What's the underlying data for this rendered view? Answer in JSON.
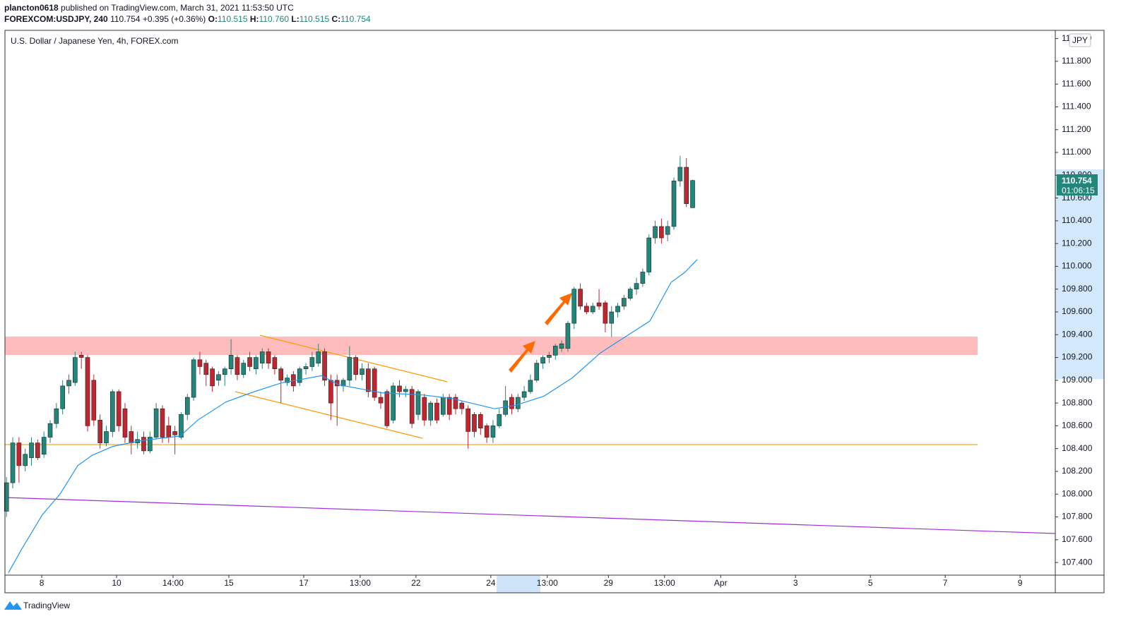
{
  "header": {
    "author": "plancton0618",
    "published": "published on TradingView.com, March 31, 2021 11:53:50 UTC",
    "symbol": "FOREXCOM:USDJPY, 240",
    "last": "110.754",
    "change": "+0.395 (+0.36%)",
    "ohlc": [
      {
        "label": "O:",
        "value": "110.515"
      },
      {
        "label": "H:",
        "value": "110.760"
      },
      {
        "label": "L:",
        "value": "110.515"
      },
      {
        "label": "C:",
        "value": "110.754"
      }
    ]
  },
  "currency": "JPY",
  "price_badge": {
    "price": "110.754",
    "countdown": "01:06:15"
  },
  "footer": {
    "brand": "TradingView"
  },
  "chart_data": {
    "type": "candlestick",
    "title": "U.S. Dollar / Japanese Yen, 4h, FOREX.com",
    "up_color": "#22877a",
    "down_color": "#c0262f",
    "grid": false,
    "xlim": [
      -0.25,
      168.15
    ],
    "xticks": [
      {
        "value": 5.65,
        "label": "8"
      },
      {
        "value": 17.65,
        "label": "10"
      },
      {
        "value": 26.7,
        "label": "14:00"
      },
      {
        "value": 35.65,
        "label": "15"
      },
      {
        "value": 47.65,
        "label": "17"
      },
      {
        "value": 56.7,
        "label": "13:00"
      },
      {
        "value": 65.65,
        "label": "22"
      },
      {
        "value": 77.65,
        "label": "24"
      },
      {
        "value": 86.7,
        "label": "13:00"
      },
      {
        "value": 96.5,
        "label": "29"
      },
      {
        "value": 105.5,
        "label": "13:00"
      },
      {
        "value": 114.5,
        "label": "Apr"
      },
      {
        "value": 126.5,
        "label": "3"
      },
      {
        "value": 138.5,
        "label": "5"
      },
      {
        "value": 150.5,
        "label": "7"
      },
      {
        "value": 162.5,
        "label": "9"
      }
    ],
    "ylim": [
      107.289,
      112.072
    ],
    "yticks": [
      {
        "value": 107.4,
        "label": "107.400"
      },
      {
        "value": 107.6,
        "label": "107.600"
      },
      {
        "value": 107.8,
        "label": "107.800"
      },
      {
        "value": 108.0,
        "label": "108.000"
      },
      {
        "value": 108.2,
        "label": "108.200"
      },
      {
        "value": 108.4,
        "label": "108.400"
      },
      {
        "value": 108.6,
        "label": "108.600"
      },
      {
        "value": 108.8,
        "label": "108.800"
      },
      {
        "value": 109.0,
        "label": "109.000"
      },
      {
        "value": 109.2,
        "label": "109.200"
      },
      {
        "value": 109.4,
        "label": "109.400"
      },
      {
        "value": 109.6,
        "label": "109.600"
      },
      {
        "value": 109.8,
        "label": "109.800"
      },
      {
        "value": 110.0,
        "label": "110.000"
      },
      {
        "value": 110.2,
        "label": "110.200"
      },
      {
        "value": 110.4,
        "label": "110.400"
      },
      {
        "value": 110.6,
        "label": "110.600"
      },
      {
        "value": 110.8,
        "label": "110.800"
      },
      {
        "value": 111.0,
        "label": "111.000"
      },
      {
        "value": 111.2,
        "label": "111.200"
      },
      {
        "value": 111.4,
        "label": "111.400"
      },
      {
        "value": 111.6,
        "label": "111.600"
      },
      {
        "value": 111.8,
        "label": "111.800"
      },
      {
        "value": 112.0,
        "label": "112.000"
      }
    ],
    "open": [
      107.85,
      108.1,
      108.45,
      108.25,
      108.32,
      108.45,
      108.35,
      108.5,
      108.62,
      108.75,
      108.95,
      108.98,
      109.22,
      109.2,
      109.0,
      108.65,
      108.45,
      108.55,
      108.9,
      108.75,
      108.55,
      108.45,
      108.5,
      108.38,
      108.5,
      108.75,
      108.6,
      108.55,
      108.5,
      108.7,
      108.85,
      109.18,
      109.15,
      109.1,
      109.0,
      109.05,
      109.1,
      109.2,
      109.05,
      109.2,
      109.1,
      109.15,
      109.25,
      109.2,
      109.1,
      108.98,
      109.05,
      108.98,
      109.1,
      109.12,
      109.15,
      109.25,
      109.0,
      109.0,
      108.95,
      109.0,
      109.2,
      109.05,
      109.1,
      109.1,
      108.85,
      108.9,
      108.65,
      108.95,
      108.9,
      108.92,
      108.7,
      108.85,
      108.65,
      108.8,
      108.7,
      108.85,
      108.85,
      108.8,
      108.75,
      108.7,
      108.7,
      108.6,
      108.5,
      108.6,
      108.7,
      108.85,
      108.75,
      108.85,
      108.9,
      109.0,
      109.15,
      109.2,
      109.22,
      109.28,
      109.28,
      109.5,
      109.8,
      109.65,
      109.6,
      109.68,
      109.68,
      109.5,
      109.6,
      109.65,
      109.72,
      109.8,
      109.85,
      109.95,
      110.25,
      110.35,
      110.28,
      110.35,
      110.75,
      110.87,
      110.515
    ],
    "high": [
      108.15,
      108.5,
      108.5,
      108.4,
      108.5,
      108.48,
      108.55,
      108.65,
      108.8,
      109.0,
      109.05,
      109.25,
      109.25,
      109.22,
      109.05,
      108.7,
      108.6,
      108.92,
      108.92,
      108.8,
      108.6,
      108.55,
      108.55,
      108.55,
      108.8,
      108.78,
      108.68,
      108.6,
      108.72,
      108.88,
      109.2,
      109.25,
      109.18,
      109.12,
      109.08,
      109.12,
      109.36,
      109.22,
      109.18,
      109.25,
      109.22,
      109.28,
      109.28,
      109.22,
      109.12,
      109.05,
      109.08,
      109.12,
      109.15,
      109.25,
      109.32,
      109.28,
      109.05,
      109.05,
      109.02,
      109.3,
      109.22,
      109.15,
      109.15,
      109.12,
      108.9,
      108.92,
      108.98,
      109.0,
      108.95,
      108.95,
      108.92,
      108.88,
      108.82,
      108.84,
      108.88,
      108.88,
      108.88,
      108.82,
      108.78,
      108.72,
      108.72,
      108.62,
      108.65,
      108.75,
      108.95,
      108.88,
      108.88,
      108.95,
      109.05,
      109.18,
      109.22,
      109.25,
      109.32,
      109.35,
      109.52,
      109.82,
      109.85,
      109.68,
      109.68,
      109.8,
      109.7,
      109.65,
      109.68,
      109.75,
      109.82,
      109.9,
      109.98,
      110.28,
      110.4,
      110.42,
      110.4,
      110.78,
      110.97,
      110.95,
      110.76
    ],
    "low": [
      107.8,
      108.05,
      108.1,
      108.2,
      108.25,
      108.3,
      108.32,
      108.45,
      108.58,
      108.7,
      108.88,
      108.95,
      109.1,
      108.55,
      108.6,
      108.4,
      108.42,
      108.5,
      108.55,
      108.45,
      108.35,
      108.4,
      108.35,
      108.36,
      108.48,
      108.45,
      108.45,
      108.35,
      108.48,
      108.65,
      108.82,
      109.05,
      108.95,
      108.9,
      108.95,
      108.95,
      109.05,
      109.0,
      109.02,
      109.08,
      109.05,
      109.1,
      109.1,
      109.05,
      108.8,
      108.95,
      108.9,
      108.95,
      109.05,
      109.08,
      109.12,
      108.95,
      108.65,
      108.6,
      108.9,
      108.95,
      109.0,
      109.0,
      108.85,
      108.82,
      108.75,
      108.58,
      108.62,
      108.85,
      108.85,
      108.58,
      108.65,
      108.6,
      108.6,
      108.62,
      108.68,
      108.65,
      108.7,
      108.7,
      108.4,
      108.5,
      108.52,
      108.45,
      108.45,
      108.58,
      108.68,
      108.7,
      108.72,
      108.82,
      108.88,
      108.98,
      109.1,
      109.15,
      109.18,
      109.25,
      109.25,
      109.45,
      109.62,
      109.58,
      109.58,
      109.62,
      109.42,
      109.38,
      109.55,
      109.62,
      109.7,
      109.75,
      109.82,
      109.92,
      110.2,
      110.2,
      110.22,
      110.32,
      110.7,
      110.52,
      110.515
    ],
    "close": [
      108.1,
      108.45,
      108.25,
      108.35,
      108.45,
      108.32,
      108.5,
      108.62,
      108.75,
      108.95,
      109.0,
      109.2,
      109.2,
      108.6,
      108.65,
      108.45,
      108.55,
      108.9,
      108.6,
      108.5,
      108.45,
      108.48,
      108.38,
      108.5,
      108.75,
      108.5,
      108.5,
      108.52,
      108.7,
      108.85,
      109.18,
      109.12,
      109.05,
      108.95,
      109.05,
      109.1,
      109.22,
      109.05,
      109.15,
      109.12,
      109.2,
      109.25,
      109.15,
      109.1,
      109.0,
      109.02,
      108.95,
      109.1,
      109.12,
      109.2,
      109.25,
      109.0,
      108.8,
      108.95,
      109.0,
      109.2,
      109.05,
      109.1,
      108.9,
      108.85,
      108.8,
      108.6,
      108.95,
      108.9,
      108.92,
      108.62,
      108.9,
      108.65,
      108.8,
      108.65,
      108.85,
      108.7,
      108.75,
      108.75,
      108.55,
      108.55,
      108.58,
      108.5,
      108.6,
      108.7,
      108.82,
      108.75,
      108.85,
      108.9,
      109.0,
      109.15,
      109.2,
      109.22,
      109.3,
      109.32,
      109.5,
      109.8,
      109.65,
      109.6,
      109.65,
      109.65,
      109.5,
      109.6,
      109.65,
      109.72,
      109.8,
      109.85,
      109.95,
      110.25,
      110.35,
      110.25,
      110.35,
      110.75,
      110.87,
      110.55,
      110.754
    ],
    "ma": {
      "color": "#2196f3",
      "x": [
        0.32,
        2.35,
        5.75,
        8.58,
        11.41,
        13.68,
        17.08,
        21.61,
        27.84,
        30.67,
        35.2,
        39.73,
        44.26,
        46.52,
        50.49,
        53.32,
        60.11,
        66.91,
        71.44,
        75.97,
        78.23,
        81.63,
        86.16,
        90.69,
        95.22,
        99.75,
        103.15,
        106.55,
        108.81,
        110.74
      ],
      "values": [
        107.31,
        107.51,
        107.82,
        108.0,
        108.25,
        108.34,
        108.42,
        108.47,
        108.51,
        108.65,
        108.81,
        108.9,
        108.98,
        109.0,
        109.04,
        108.96,
        108.89,
        108.87,
        108.84,
        108.78,
        108.75,
        108.78,
        108.86,
        109.02,
        109.24,
        109.4,
        109.52,
        109.86,
        109.95,
        110.06
      ]
    }
  }
}
